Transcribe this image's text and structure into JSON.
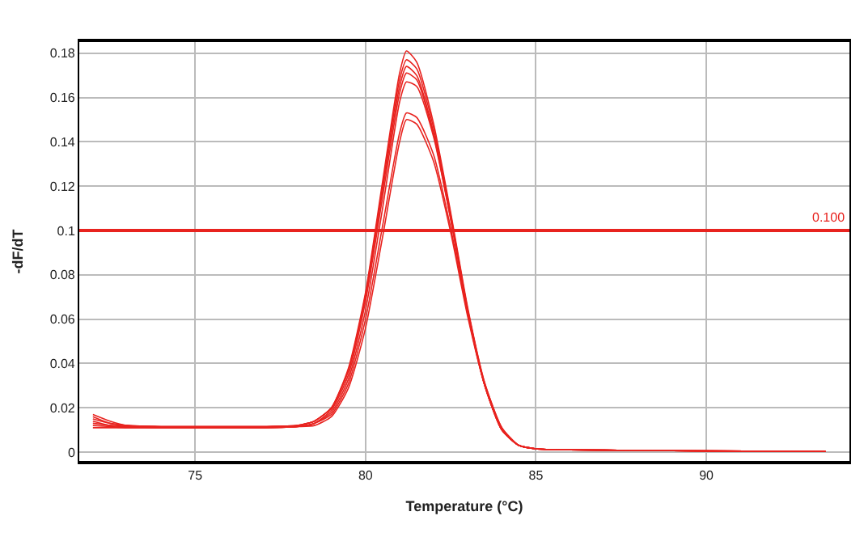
{
  "chart_data": {
    "type": "line",
    "xlabel": "Temperature (°C)",
    "ylabel": "-dF/dT",
    "x": [
      72,
      72.5,
      73,
      74,
      75,
      76,
      77,
      78,
      78.5,
      79,
      79.5,
      80,
      80.5,
      81,
      81.2,
      81.5,
      82,
      82.5,
      83,
      83.5,
      84,
      84.5,
      85,
      86,
      88,
      90,
      93.5
    ],
    "series": [
      {
        "color": "#e8231f",
        "values": [
          0.017,
          0.014,
          0.012,
          0.0115,
          0.0115,
          0.0115,
          0.0115,
          0.012,
          0.014,
          0.02,
          0.038,
          0.072,
          0.122,
          0.171,
          0.181,
          0.176,
          0.148,
          0.108,
          0.065,
          0.031,
          0.011,
          0.003,
          0.0015,
          0.001,
          0.0008,
          0.0005,
          0.0003
        ]
      },
      {
        "color": "#e8231f",
        "values": [
          0.016,
          0.013,
          0.012,
          0.0115,
          0.0115,
          0.0115,
          0.0115,
          0.012,
          0.014,
          0.02,
          0.037,
          0.071,
          0.12,
          0.168,
          0.177,
          0.173,
          0.146,
          0.107,
          0.064,
          0.03,
          0.01,
          0.003,
          0.0015,
          0.001,
          0.0008,
          0.0005,
          0.0003
        ]
      },
      {
        "color": "#e8231f",
        "values": [
          0.015,
          0.013,
          0.012,
          0.0115,
          0.0115,
          0.0115,
          0.0115,
          0.012,
          0.014,
          0.02,
          0.037,
          0.07,
          0.118,
          0.165,
          0.174,
          0.17,
          0.144,
          0.106,
          0.064,
          0.03,
          0.01,
          0.003,
          0.0015,
          0.001,
          0.0008,
          0.0005,
          0.0003
        ]
      },
      {
        "color": "#e8231f",
        "values": [
          0.014,
          0.012,
          0.0115,
          0.011,
          0.011,
          0.011,
          0.011,
          0.0115,
          0.013,
          0.019,
          0.035,
          0.068,
          0.115,
          0.162,
          0.171,
          0.168,
          0.143,
          0.105,
          0.063,
          0.03,
          0.01,
          0.003,
          0.0015,
          0.001,
          0.0008,
          0.0005,
          0.0003
        ]
      },
      {
        "color": "#e8231f",
        "values": [
          0.013,
          0.012,
          0.0115,
          0.011,
          0.011,
          0.011,
          0.011,
          0.0115,
          0.013,
          0.018,
          0.033,
          0.064,
          0.11,
          0.158,
          0.167,
          0.165,
          0.142,
          0.105,
          0.064,
          0.031,
          0.011,
          0.003,
          0.0015,
          0.001,
          0.0008,
          0.0005,
          0.0003
        ]
      },
      {
        "color": "#e8231f",
        "values": [
          0.012,
          0.0115,
          0.011,
          0.011,
          0.011,
          0.011,
          0.011,
          0.0115,
          0.013,
          0.017,
          0.031,
          0.06,
          0.102,
          0.144,
          0.153,
          0.151,
          0.134,
          0.101,
          0.062,
          0.03,
          0.01,
          0.003,
          0.0015,
          0.001,
          0.0008,
          0.0005,
          0.0003
        ]
      },
      {
        "color": "#e8231f",
        "values": [
          0.011,
          0.011,
          0.011,
          0.011,
          0.011,
          0.011,
          0.011,
          0.0115,
          0.012,
          0.016,
          0.029,
          0.056,
          0.097,
          0.14,
          0.15,
          0.148,
          0.131,
          0.099,
          0.061,
          0.03,
          0.01,
          0.003,
          0.0015,
          0.001,
          0.0008,
          0.0005,
          0.0003
        ]
      }
    ],
    "xlim": [
      71.6,
      94.2
    ],
    "ylim": [
      -0.004,
      0.185
    ],
    "xticks": [
      75,
      80,
      85,
      90
    ],
    "yticks": [
      0,
      0.02,
      0.04,
      0.06,
      0.08,
      0.1,
      0.12,
      0.14,
      0.16,
      0.18
    ],
    "ref_lines": [
      {
        "axis": "y",
        "value": 0.1,
        "label": "0.100",
        "color": "#e8231f"
      }
    ],
    "grid": true,
    "marker": "none",
    "line_style": "solid"
  }
}
